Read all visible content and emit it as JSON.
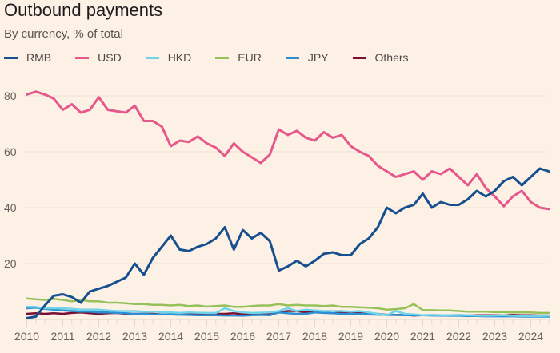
{
  "chart_data": {
    "type": "line",
    "title": "Outbound payments",
    "subtitle": "By currency, % of total",
    "xlabel": "",
    "ylabel": "",
    "xlim": [
      2010,
      2024.6
    ],
    "ylim": [
      0,
      85
    ],
    "grid": true,
    "legend_position": "top-left",
    "x_ticks": [
      "2010",
      "2011",
      "2012",
      "2013",
      "2014",
      "2015",
      "2016",
      "2017",
      "2018",
      "2019",
      "2020",
      "2021",
      "2022",
      "2023",
      "2024"
    ],
    "y_ticks": [
      20,
      40,
      60,
      80
    ],
    "x": [
      2010,
      2010.25,
      2010.5,
      2010.75,
      2011,
      2011.25,
      2011.5,
      2011.75,
      2012,
      2012.25,
      2012.5,
      2012.75,
      2013,
      2013.25,
      2013.5,
      2013.75,
      2014,
      2014.25,
      2014.5,
      2014.75,
      2015,
      2015.25,
      2015.5,
      2015.75,
      2016,
      2016.25,
      2016.5,
      2016.75,
      2017,
      2017.25,
      2017.5,
      2017.75,
      2018,
      2018.25,
      2018.5,
      2018.75,
      2019,
      2019.25,
      2019.5,
      2019.75,
      2020,
      2020.25,
      2020.5,
      2020.75,
      2021,
      2021.25,
      2021.5,
      2021.75,
      2022,
      2022.25,
      2022.5,
      2022.75,
      2023,
      2023.25,
      2023.5,
      2023.75,
      2024,
      2024.25,
      2024.5
    ],
    "series": [
      {
        "name": "RMB",
        "color": "#174f8f",
        "values": [
          0.5,
          1,
          5,
          8.5,
          9,
          8,
          6,
          10,
          11,
          12,
          13.5,
          15,
          20,
          16,
          22,
          26,
          30,
          25,
          24.5,
          26,
          27,
          29,
          33,
          25,
          32,
          29,
          31,
          28,
          17.5,
          19,
          21,
          19,
          21,
          23.5,
          24,
          23,
          23,
          27,
          29,
          33,
          40,
          38,
          40,
          41,
          45,
          40,
          42,
          41,
          41,
          43,
          46,
          44,
          46,
          49.5,
          51,
          48,
          51,
          54,
          53
        ]
      },
      {
        "name": "USD",
        "color": "#e5588a",
        "values": [
          80.5,
          81.5,
          80.5,
          79,
          75,
          77,
          74,
          75,
          79.5,
          75,
          74.5,
          74,
          76.5,
          71,
          71,
          69,
          62,
          64,
          63.5,
          65.5,
          63,
          61.5,
          58.5,
          63,
          60,
          58,
          56,
          59,
          68,
          66,
          67.5,
          65,
          64,
          67,
          65,
          66,
          62,
          60,
          58.5,
          55,
          53,
          51,
          52,
          53,
          50,
          53,
          52,
          54,
          51,
          48,
          52,
          47,
          44,
          40.5,
          44,
          46,
          42,
          40,
          39.5
        ]
      },
      {
        "name": "HKD",
        "color": "#6fd3ea",
        "values": [
          4.5,
          4.5,
          4,
          4,
          4,
          3.8,
          3.5,
          3.5,
          3.5,
          3.2,
          3,
          3,
          3,
          2.8,
          2.8,
          2.6,
          2.5,
          2.3,
          2.5,
          2.4,
          2.3,
          2.3,
          4,
          3,
          2.5,
          2.3,
          2.4,
          2.5,
          3,
          4,
          3,
          3.5,
          3.2,
          3,
          3,
          3,
          2.8,
          3,
          2.5,
          2,
          1.5,
          3,
          2,
          1.8,
          1.5,
          1.6,
          1.5,
          1.5,
          1.6,
          1.5,
          1.4,
          1.3,
          1.4,
          1.5,
          1.3,
          1.2,
          1.2,
          1.2,
          1.3
        ]
      },
      {
        "name": "EUR",
        "color": "#96c15a",
        "values": [
          7.5,
          7.2,
          7,
          7.3,
          7,
          6.5,
          7,
          6.5,
          6.5,
          6,
          6,
          5.8,
          5.5,
          5.5,
          5.2,
          5.2,
          5,
          5.2,
          4.8,
          5,
          4.6,
          4.8,
          5,
          4.5,
          4.5,
          4.8,
          5,
          5,
          5.5,
          5,
          5.2,
          5,
          5,
          4.8,
          5,
          4.5,
          4.5,
          4.3,
          4.2,
          4,
          3.5,
          3.7,
          4,
          5.5,
          3.3,
          3.3,
          3.2,
          3.2,
          3,
          2.8,
          2.8,
          2.8,
          2.6,
          2.6,
          2.5,
          2.5,
          2.5,
          2.3,
          2.3
        ]
      },
      {
        "name": "JPY",
        "color": "#2c8fd3",
        "values": [
          4,
          4.2,
          3.8,
          3.5,
          3.2,
          3,
          2.8,
          2.8,
          2.5,
          2.5,
          2.3,
          2.2,
          2,
          2,
          1.8,
          1.8,
          1.8,
          1.7,
          1.6,
          1.5,
          1.5,
          1.5,
          1.4,
          1.4,
          1.3,
          1.5,
          1.6,
          1.5,
          2.5,
          2.2,
          2,
          2,
          2.5,
          2.3,
          2.2,
          2,
          2,
          2,
          1.8,
          1.7,
          1.7,
          1.6,
          1.5,
          1.5,
          1.5,
          1.4,
          1.4,
          1.3,
          1.3,
          1.2,
          1.2,
          1.1,
          1.1,
          1.1,
          1.1,
          1,
          1,
          1,
          1
        ]
      },
      {
        "name": "Others",
        "color": "#7a0f32",
        "values": [
          2,
          2.2,
          2,
          2.2,
          2,
          2.3,
          2.5,
          2.2,
          2,
          2.2,
          2.3,
          2,
          2,
          2,
          2,
          1.8,
          1.8,
          1.8,
          1.8,
          1.8,
          1.8,
          2,
          2,
          2.2,
          1.8,
          1.8,
          2,
          2.2,
          2.5,
          3,
          3,
          2.5,
          3.2,
          2.5,
          2.2,
          2.5,
          2.3,
          2.2,
          2,
          2,
          1.6,
          1.6,
          1.6,
          1.4,
          1.5,
          1.5,
          1.4,
          1.5,
          1.5,
          1.4,
          1.5,
          1.5,
          1.5,
          1.5,
          1.6,
          1.5,
          1.5,
          1.4,
          1.4
        ]
      }
    ]
  }
}
